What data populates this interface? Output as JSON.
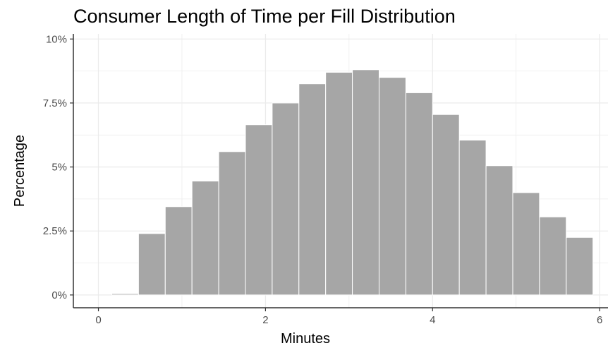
{
  "chart_data": {
    "type": "bar",
    "title": "Consumer Length of Time per Fill Distribution",
    "xlabel": "Minutes",
    "ylabel": "Percentage",
    "xlim": [
      -0.3,
      6.1
    ],
    "ylim": [
      -0.5,
      10.2
    ],
    "x_ticks": [
      {
        "value": 0,
        "label": "0"
      },
      {
        "value": 2,
        "label": "2"
      },
      {
        "value": 4,
        "label": "4"
      },
      {
        "value": 6,
        "label": "6"
      }
    ],
    "y_ticks": [
      {
        "value": 0,
        "label": "0%"
      },
      {
        "value": 2.5,
        "label": "2.5%"
      },
      {
        "value": 5,
        "label": "5%"
      },
      {
        "value": 7.5,
        "label": "7.5%"
      },
      {
        "value": 10,
        "label": "10%"
      }
    ],
    "bins": [
      {
        "start": 0.16,
        "end": 0.48,
        "value": 0.05
      },
      {
        "start": 0.48,
        "end": 0.8,
        "value": 2.4
      },
      {
        "start": 0.8,
        "end": 1.12,
        "value": 3.45
      },
      {
        "start": 1.12,
        "end": 1.44,
        "value": 4.45
      },
      {
        "start": 1.44,
        "end": 1.76,
        "value": 5.6
      },
      {
        "start": 1.76,
        "end": 2.08,
        "value": 6.65
      },
      {
        "start": 2.08,
        "end": 2.4,
        "value": 7.5
      },
      {
        "start": 2.4,
        "end": 2.72,
        "value": 8.25
      },
      {
        "start": 2.72,
        "end": 3.04,
        "value": 8.7
      },
      {
        "start": 3.04,
        "end": 3.36,
        "value": 8.8
      },
      {
        "start": 3.36,
        "end": 3.68,
        "value": 8.5
      },
      {
        "start": 3.68,
        "end": 4.0,
        "value": 7.9
      },
      {
        "start": 4.0,
        "end": 4.32,
        "value": 7.05
      },
      {
        "start": 4.32,
        "end": 4.64,
        "value": 6.05
      },
      {
        "start": 4.64,
        "end": 4.96,
        "value": 5.05
      },
      {
        "start": 4.96,
        "end": 5.28,
        "value": 4.0
      },
      {
        "start": 5.28,
        "end": 5.6,
        "value": 3.05
      },
      {
        "start": 5.6,
        "end": 5.92,
        "value": 2.25
      }
    ],
    "bar_fill": "#a6a6a6",
    "bar_stroke": "#ffffff",
    "grid": true,
    "grid_color": "#ebebeb",
    "axis_color": "#333333",
    "legend": "none"
  }
}
